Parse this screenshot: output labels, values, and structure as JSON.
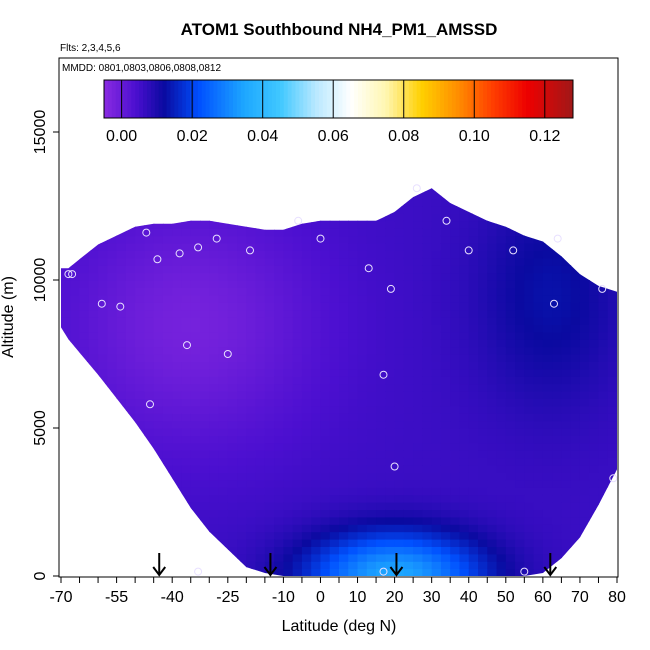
{
  "chart_data": {
    "type": "heatmap",
    "title": "ATOM1 Southbound NH4_PM1_AMSSD",
    "flights_label": "Flts: 2,3,4,5,6",
    "mmdd_label": "MMDD: 0801,0803,0806,0808,0812",
    "xlabel": "Latitude (deg N)",
    "ylabel": "Altitude (m)",
    "xlim": [
      -70,
      80
    ],
    "ylim": [
      0,
      17500
    ],
    "x_ticks": [
      -70,
      -55,
      -40,
      -25,
      -10,
      0,
      10,
      20,
      30,
      40,
      50,
      60,
      70,
      80
    ],
    "x_tick_labels": [
      "-70",
      "-55",
      "-40",
      "-25",
      "-10",
      "0",
      "10",
      "20",
      "30",
      "40",
      "50",
      "60",
      "70",
      "80"
    ],
    "y_ticks": [
      0,
      5000,
      10000,
      15000
    ],
    "y_tick_labels": [
      "0",
      "5000",
      "10000",
      "15000"
    ],
    "colorbar": {
      "range": [
        -0.005,
        0.128
      ],
      "ticks": [
        0.0,
        0.02,
        0.04,
        0.06,
        0.08,
        0.1,
        0.12
      ],
      "tick_labels": [
        "0.00",
        "0.02",
        "0.04",
        "0.06",
        "0.08",
        "0.10",
        "0.12"
      ],
      "stops": [
        {
          "v": -0.005,
          "c": "#8a2be2"
        },
        {
          "v": 0.004,
          "c": "#4b0fd0"
        },
        {
          "v": 0.012,
          "c": "#0a0aa0"
        },
        {
          "v": 0.022,
          "c": "#0050ff"
        },
        {
          "v": 0.035,
          "c": "#1ea8ff"
        },
        {
          "v": 0.045,
          "c": "#40c8ff"
        },
        {
          "v": 0.055,
          "c": "#b8e8ff"
        },
        {
          "v": 0.065,
          "c": "#ffffff"
        },
        {
          "v": 0.075,
          "c": "#fff6b0"
        },
        {
          "v": 0.085,
          "c": "#ffd000"
        },
        {
          "v": 0.095,
          "c": "#ff9000"
        },
        {
          "v": 0.105,
          "c": "#ff4000"
        },
        {
          "v": 0.115,
          "c": "#ee0000"
        },
        {
          "v": 0.128,
          "c": "#a01818"
        }
      ]
    },
    "field_envelope": {
      "latitudes": [
        -70,
        -68,
        -64,
        -60,
        -55,
        -50,
        -45,
        -40,
        -35,
        -30,
        -25,
        -20,
        -15,
        -10,
        -5,
        0,
        5,
        10,
        15,
        20,
        25,
        30,
        35,
        40,
        45,
        50,
        55,
        60,
        65,
        70,
        75,
        80
      ],
      "top_altitude": [
        10400,
        10400,
        10800,
        11200,
        11500,
        11800,
        11900,
        11900,
        12000,
        12000,
        11900,
        11800,
        11700,
        11700,
        11900,
        12000,
        12000,
        12000,
        12000,
        12300,
        12800,
        13100,
        12600,
        12300,
        12000,
        11800,
        11500,
        11300,
        10800,
        10200,
        9800,
        9600
      ],
      "bottom_altitude": [
        8400,
        8000,
        7400,
        6800,
        6000,
        5200,
        4300,
        3300,
        2300,
        1500,
        900,
        300,
        100,
        0,
        0,
        0,
        0,
        0,
        0,
        0,
        0,
        0,
        0,
        0,
        0,
        0,
        0,
        100,
        600,
        1300,
        2400,
        3600
      ]
    },
    "field_features": [
      {
        "name": "background",
        "value": 0.006
      },
      {
        "name": "upper-southern-mid band",
        "value": -0.002
      },
      {
        "name": "northern upper blue",
        "value": 0.013
      },
      {
        "name": "boundary-layer plume",
        "lat": 20,
        "alt": 0,
        "value": 0.035
      }
    ],
    "sample_points": [
      {
        "lat": -68,
        "alt": 10200
      },
      {
        "lat": -67,
        "alt": 10200
      },
      {
        "lat": -59,
        "alt": 9200
      },
      {
        "lat": -54,
        "alt": 9100
      },
      {
        "lat": -47,
        "alt": 11600
      },
      {
        "lat": -44,
        "alt": 10700
      },
      {
        "lat": -38,
        "alt": 10900
      },
      {
        "lat": -33,
        "alt": 11100
      },
      {
        "lat": -28,
        "alt": 11400
      },
      {
        "lat": -19,
        "alt": 11000
      },
      {
        "lat": -6,
        "alt": 12000
      },
      {
        "lat": 0,
        "alt": 11400
      },
      {
        "lat": 13,
        "alt": 10400
      },
      {
        "lat": 19,
        "alt": 9700
      },
      {
        "lat": 26,
        "alt": 13100
      },
      {
        "lat": 34,
        "alt": 12000
      },
      {
        "lat": 40,
        "alt": 11000
      },
      {
        "lat": 52,
        "alt": 11000
      },
      {
        "lat": 64,
        "alt": 11400
      },
      {
        "lat": 76,
        "alt": 9700
      },
      {
        "lat": 63,
        "alt": 9200
      },
      {
        "lat": -36,
        "alt": 7800
      },
      {
        "lat": -25,
        "alt": 7500
      },
      {
        "lat": 17,
        "alt": 6800
      },
      {
        "lat": -46,
        "alt": 5800
      },
      {
        "lat": 20,
        "alt": 3700
      },
      {
        "lat": 79,
        "alt": 3300
      },
      {
        "lat": -33,
        "alt": 150
      },
      {
        "lat": 17,
        "alt": 150
      },
      {
        "lat": 55,
        "alt": 150
      }
    ],
    "arrow_markers": [
      {
        "lat": -43.5,
        "alt": 0
      },
      {
        "lat": -13.5,
        "alt": 0
      },
      {
        "lat": 20.5,
        "alt": 0
      },
      {
        "lat": 62,
        "alt": 0
      }
    ]
  }
}
